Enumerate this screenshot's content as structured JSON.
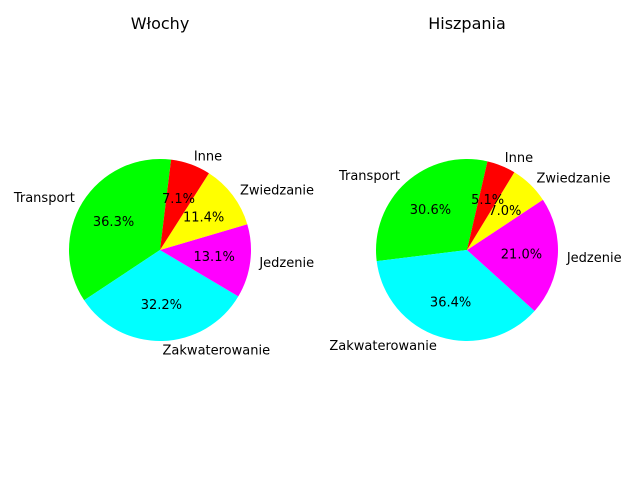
{
  "chart_data": [
    {
      "type": "pie",
      "title": "Włochy",
      "categories": [
        "Transport",
        "Zakwaterowanie",
        "Jedzenie",
        "Zwiedzanie",
        "Inne"
      ],
      "values": [
        36.3,
        32.2,
        13.1,
        11.4,
        7.1
      ],
      "value_labels": [
        "36.3%",
        "32.2%",
        "13.1%",
        "11.4%",
        "7.1%"
      ],
      "colors": [
        "#00ff00",
        "#00ffff",
        "#ff00ff",
        "#ffff00",
        "#ff0000"
      ],
      "start_angle_deg": 83,
      "direction": "counterclockwise"
    },
    {
      "type": "pie",
      "title": "Hiszpania",
      "categories": [
        "Transport",
        "Zakwaterowanie",
        "Jedzenie",
        "Zwiedzanie",
        "Inne"
      ],
      "values": [
        30.6,
        36.4,
        21.0,
        7.0,
        5.1
      ],
      "value_labels": [
        "30.6%",
        "36.4%",
        "21.0%",
        "7.0%",
        "5.1%"
      ],
      "colors": [
        "#00ff00",
        "#00ffff",
        "#ff00ff",
        "#ffff00",
        "#ff0000"
      ],
      "start_angle_deg": 77,
      "direction": "counterclockwise"
    }
  ]
}
